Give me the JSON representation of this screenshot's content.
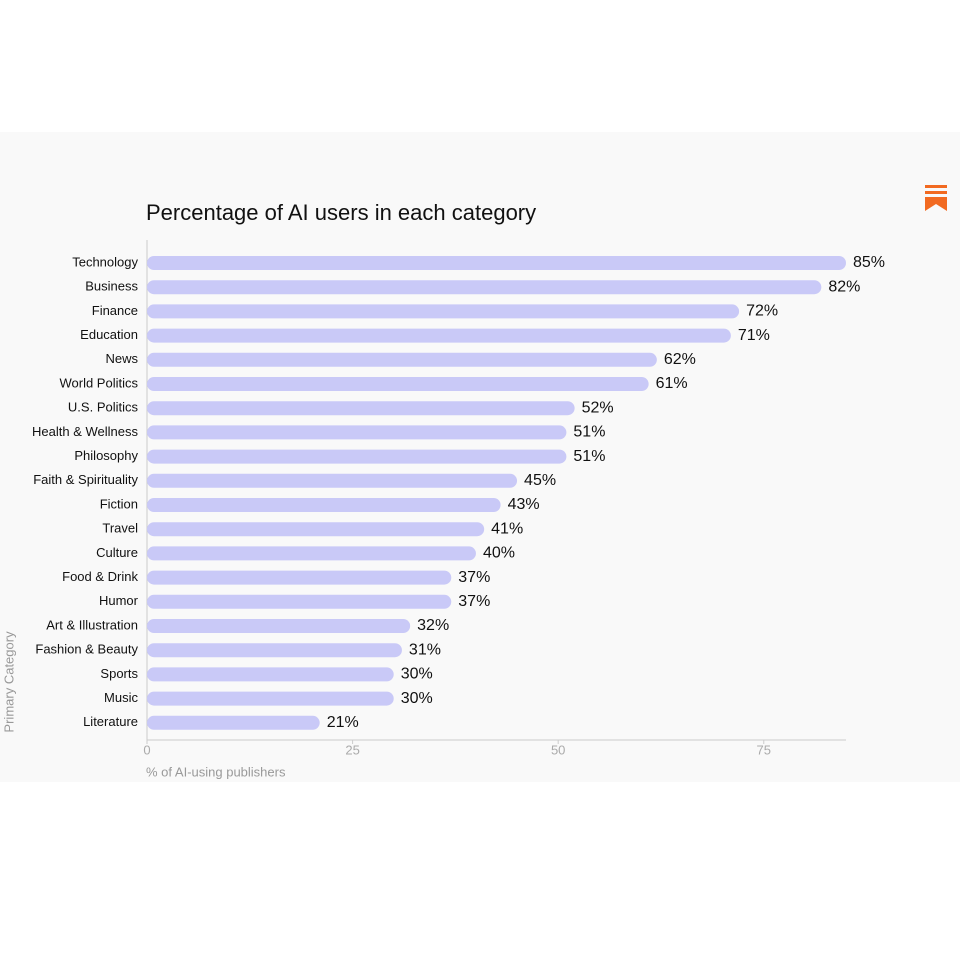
{
  "chart_data": {
    "type": "bar",
    "orientation": "horizontal",
    "title": "Percentage of AI users in each category",
    "x_label": "% of AI-using publishers",
    "y_label": "Primary Category",
    "categories": [
      "Technology",
      "Business",
      "Finance",
      "Education",
      "News",
      "World Politics",
      "U.S. Politics",
      "Health & Wellness",
      "Philosophy",
      "Faith & Spirituality",
      "Fiction",
      "Travel",
      "Culture",
      "Food & Drink",
      "Humor",
      "Art & Illustration",
      "Fashion & Beauty",
      "Sports",
      "Music",
      "Literature"
    ],
    "values": [
      85,
      82,
      72,
      71,
      62,
      61,
      52,
      51,
      51,
      45,
      43,
      41,
      40,
      37,
      37,
      32,
      31,
      30,
      30,
      21
    ],
    "value_labels": [
      "85%",
      "82%",
      "72%",
      "71%",
      "62%",
      "61%",
      "52%",
      "51%",
      "51%",
      "45%",
      "43%",
      "41%",
      "40%",
      "37%",
      "37%",
      "32%",
      "31%",
      "30%",
      "30%",
      "21%"
    ],
    "color": "#c9c9f7",
    "xlim": [
      0,
      85
    ],
    "xticks": [
      0,
      25,
      50,
      75
    ],
    "grid": false
  }
}
